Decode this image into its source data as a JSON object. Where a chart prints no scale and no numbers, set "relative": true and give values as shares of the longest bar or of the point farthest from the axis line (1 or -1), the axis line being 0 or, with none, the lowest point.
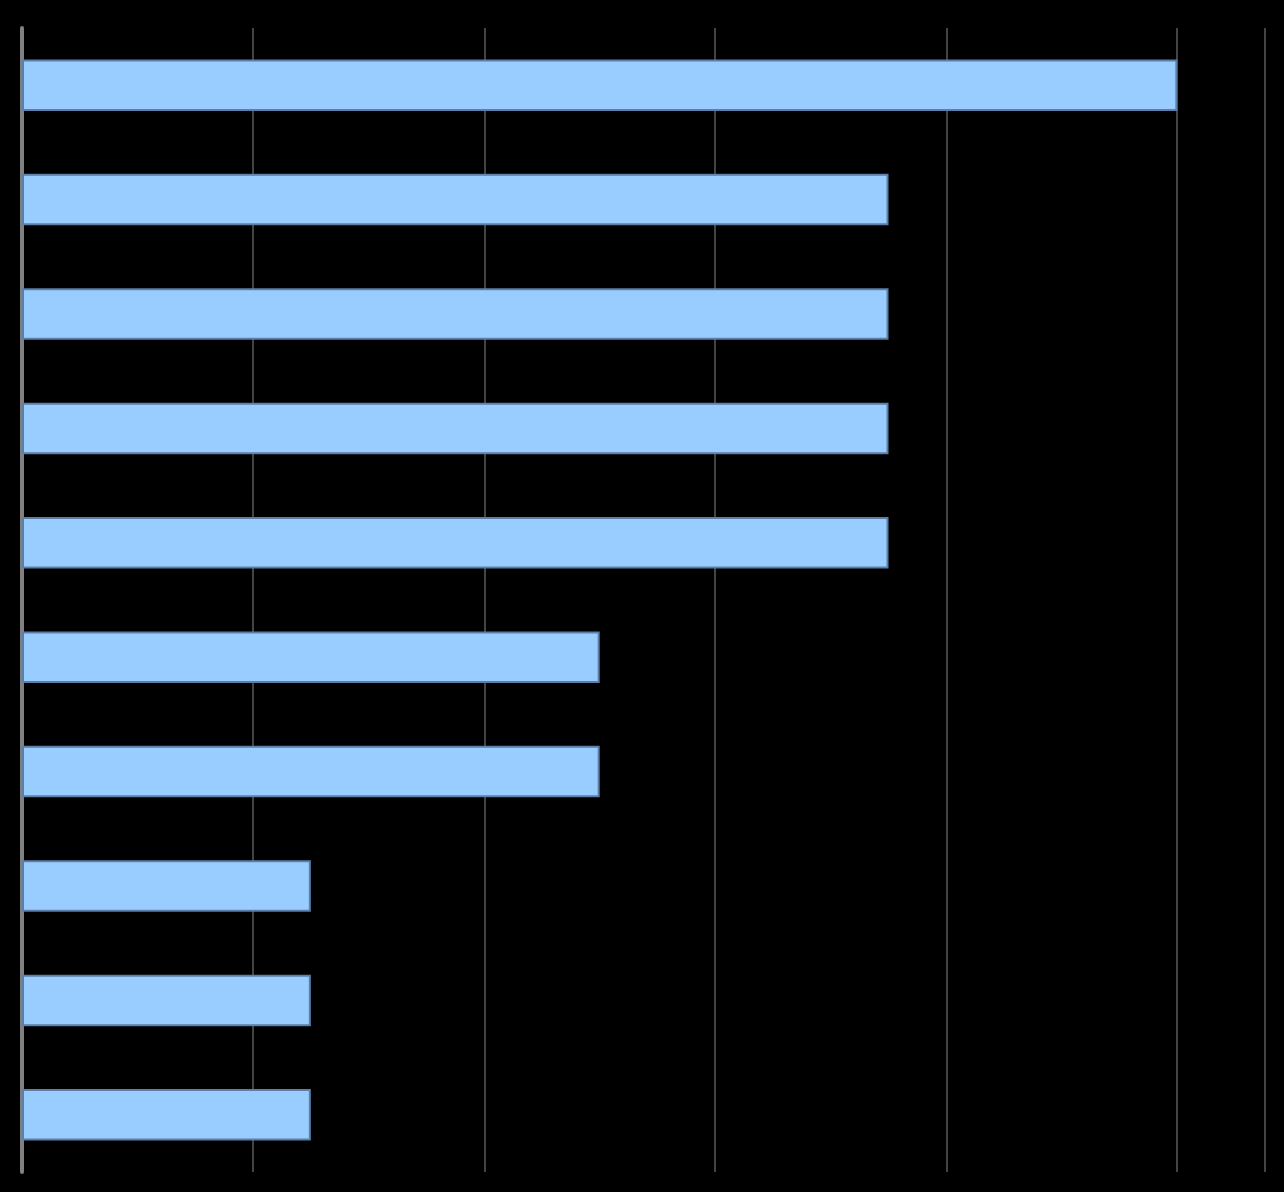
{
  "chart_data": {
    "type": "bar",
    "orientation": "horizontal",
    "relative": true,
    "grid": "x",
    "categories": [
      null,
      null,
      null,
      null,
      null,
      null,
      null,
      null,
      null,
      null
    ],
    "series": [
      {
        "color": "#99ccff",
        "values": [
          1,
          0.75,
          0.75,
          0.75,
          0.75,
          0.5,
          0.5,
          0.25,
          0.25,
          0.25
        ]
      }
    ]
  }
}
